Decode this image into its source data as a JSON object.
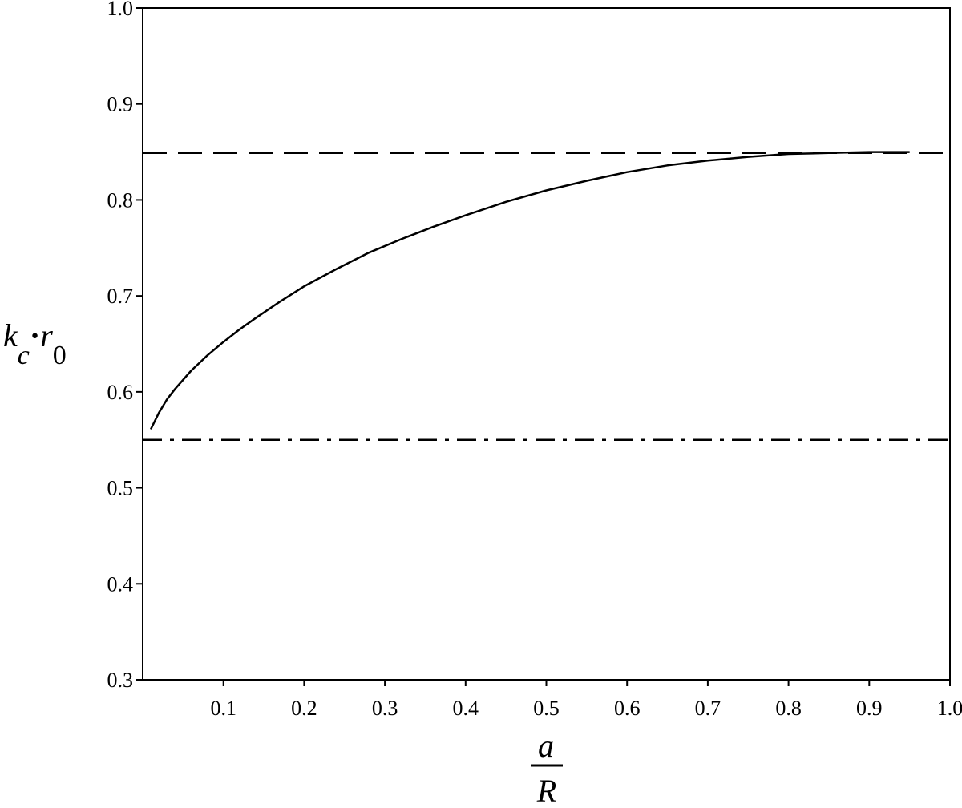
{
  "chart_data": {
    "type": "line",
    "title": "",
    "xlabel": {
      "numerator": "a",
      "denominator": "R"
    },
    "ylabel": {
      "k": "k",
      "k_sub": "c",
      "dot": "·",
      "r": "r",
      "r_sub": "0"
    },
    "xlim": [
      0.0,
      1.0
    ],
    "ylim": [
      0.3,
      1.0
    ],
    "xticks": [
      0.1,
      0.2,
      0.3,
      0.4,
      0.5,
      0.6,
      0.7,
      0.8,
      0.9,
      1.0
    ],
    "xtick_labels": [
      "0.1",
      "0.2",
      "0.3",
      "0.4",
      "0.5",
      "0.6",
      "0.7",
      "0.8",
      "0.9",
      "1.0"
    ],
    "yticks": [
      0.3,
      0.4,
      0.5,
      0.6,
      0.7,
      0.8,
      0.9,
      1.0
    ],
    "ytick_labels": [
      "0.3",
      "0.4",
      "0.5",
      "0.6",
      "0.7",
      "0.8",
      "0.9",
      "1.0"
    ],
    "grid": false,
    "legend": "none",
    "series": [
      {
        "style": "solid",
        "color": "#000000",
        "x": [
          0.01,
          0.02,
          0.03,
          0.04,
          0.06,
          0.08,
          0.1,
          0.12,
          0.14,
          0.17,
          0.2,
          0.24,
          0.28,
          0.32,
          0.36,
          0.4,
          0.45,
          0.5,
          0.55,
          0.6,
          0.65,
          0.7,
          0.75,
          0.8,
          0.85,
          0.9,
          0.95
        ],
        "y": [
          0.561,
          0.578,
          0.592,
          0.603,
          0.622,
          0.638,
          0.652,
          0.665,
          0.677,
          0.694,
          0.71,
          0.728,
          0.745,
          0.759,
          0.772,
          0.784,
          0.798,
          0.81,
          0.82,
          0.829,
          0.836,
          0.841,
          0.845,
          0.848,
          0.849,
          0.85,
          0.85
        ]
      },
      {
        "style": "dashed",
        "color": "#000000",
        "x": [
          0.0,
          1.0
        ],
        "y": [
          0.849,
          0.849
        ]
      },
      {
        "style": "dashdot",
        "color": "#000000",
        "x": [
          0.0,
          1.0
        ],
        "y": [
          0.55,
          0.55
        ]
      }
    ]
  }
}
